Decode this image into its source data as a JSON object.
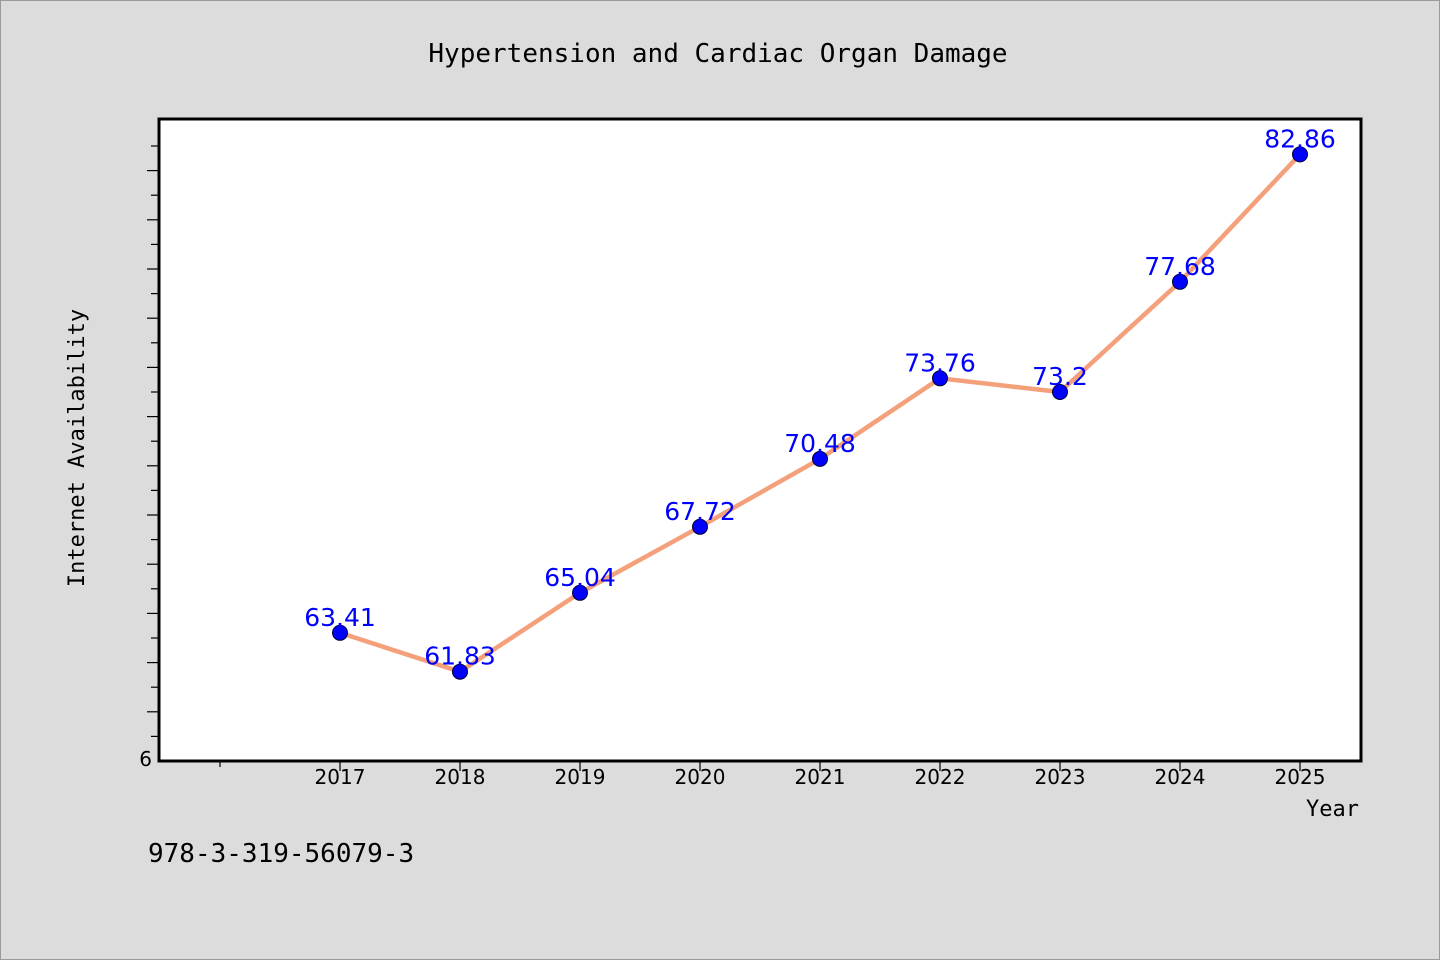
{
  "chart_data": {
    "type": "line",
    "title": "Hypertension and Cardiac Organ Damage",
    "xlabel": "Year",
    "ylabel": "Internet Availability",
    "categories": [
      "2017",
      "2018",
      "2019",
      "2020",
      "2021",
      "2022",
      "2023",
      "2024",
      "2025"
    ],
    "series": [
      {
        "values": [
          63.41,
          61.83,
          65.04,
          67.72,
          70.48,
          73.76,
          73.2,
          77.68,
          82.86
        ],
        "value_labels": [
          "63.41",
          "61.83",
          "65.04",
          "67.72",
          "70.48",
          "73.76",
          "73.2",
          "77.68",
          "82.86"
        ],
        "line_color": "#f4a07a",
        "marker_color": "#0000ff"
      }
    ],
    "y_tick_labels": [
      "6"
    ],
    "ylim": [
      58.2,
      84.3
    ],
    "grid": false
  },
  "footer": {
    "text": "978-3-319-56079-3"
  }
}
